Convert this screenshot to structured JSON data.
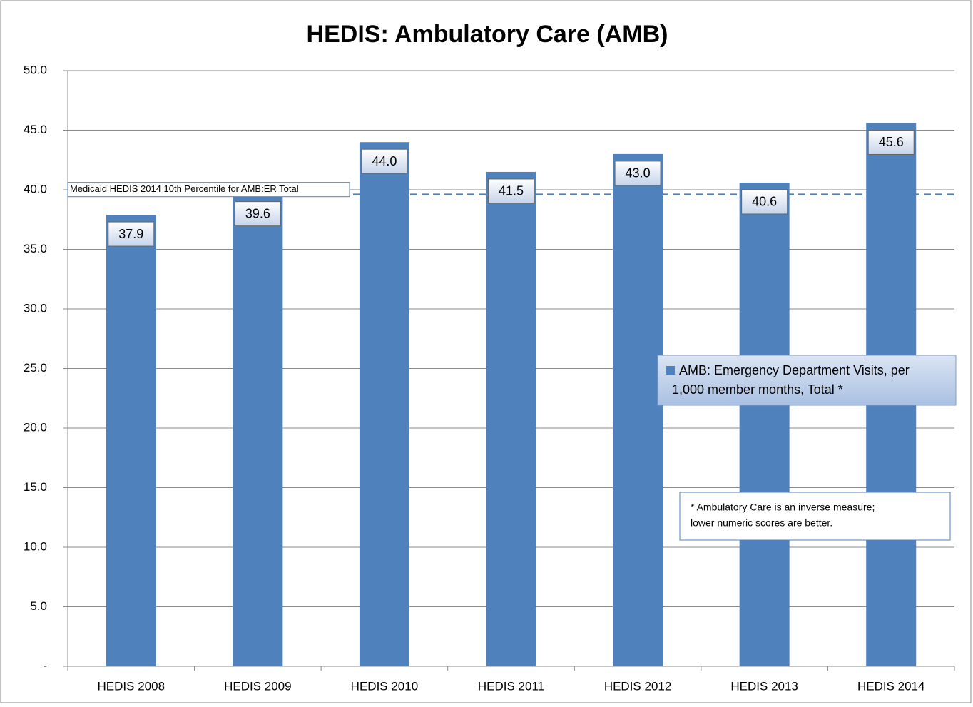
{
  "chart_data": {
    "type": "bar",
    "title": "HEDIS: Ambulatory Care (AMB)",
    "categories": [
      "HEDIS 2008",
      "HEDIS 2009",
      "HEDIS 2010",
      "HEDIS 2011",
      "HEDIS 2012",
      "HEDIS 2013",
      "HEDIS 2014"
    ],
    "series": [
      {
        "name": "AMB: Emergency Department Visits, per 1,000 member months, Total *",
        "color": "#4f81bd",
        "values": [
          37.9,
          39.6,
          44.0,
          41.5,
          43.0,
          40.6,
          45.6
        ],
        "value_labels": [
          "37.9",
          "39.6",
          "44.0",
          "41.5",
          "43.0",
          "40.6",
          "45.6"
        ]
      }
    ],
    "reference_line": {
      "label": "Medicaid HEDIS 2014 10th Percentile for AMB:ER Total",
      "value": 39.6,
      "color": "#4f81bd"
    },
    "note": [
      "* Ambulatory Care is an inverse measure;",
      "lower numeric scores are better."
    ],
    "ylim": [
      0,
      50
    ],
    "yticks": [
      {
        "value": 0,
        "label": "-"
      },
      {
        "value": 5,
        "label": "5.0"
      },
      {
        "value": 10,
        "label": "10.0"
      },
      {
        "value": 15,
        "label": "15.0"
      },
      {
        "value": 20,
        "label": "20.0"
      },
      {
        "value": 25,
        "label": "25.0"
      },
      {
        "value": 30,
        "label": "30.0"
      },
      {
        "value": 35,
        "label": "35.0"
      },
      {
        "value": 40,
        "label": "40.0"
      },
      {
        "value": 45,
        "label": "45.0"
      },
      {
        "value": 50,
        "label": "50.0"
      }
    ],
    "grid": true
  }
}
